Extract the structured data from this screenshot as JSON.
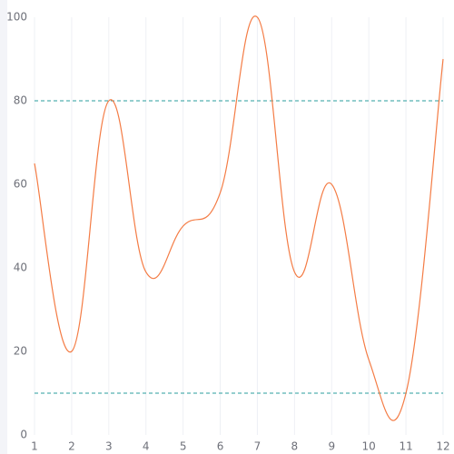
{
  "chart_data": {
    "type": "line",
    "categories": [
      "1",
      "2",
      "3",
      "4",
      "5",
      "6",
      "7",
      "8",
      "9",
      "10",
      "11",
      "12"
    ],
    "values": [
      65,
      20,
      80,
      39,
      50,
      58,
      100,
      39,
      60,
      18,
      10,
      90
    ],
    "color": "#f47c45",
    "smooth": true,
    "reference_lines": [
      80,
      10
    ],
    "reference_color": "#2a9d9d",
    "ylim": [
      0,
      100
    ],
    "yticks": [
      0,
      20,
      40,
      60,
      80,
      100
    ],
    "grid": true
  }
}
